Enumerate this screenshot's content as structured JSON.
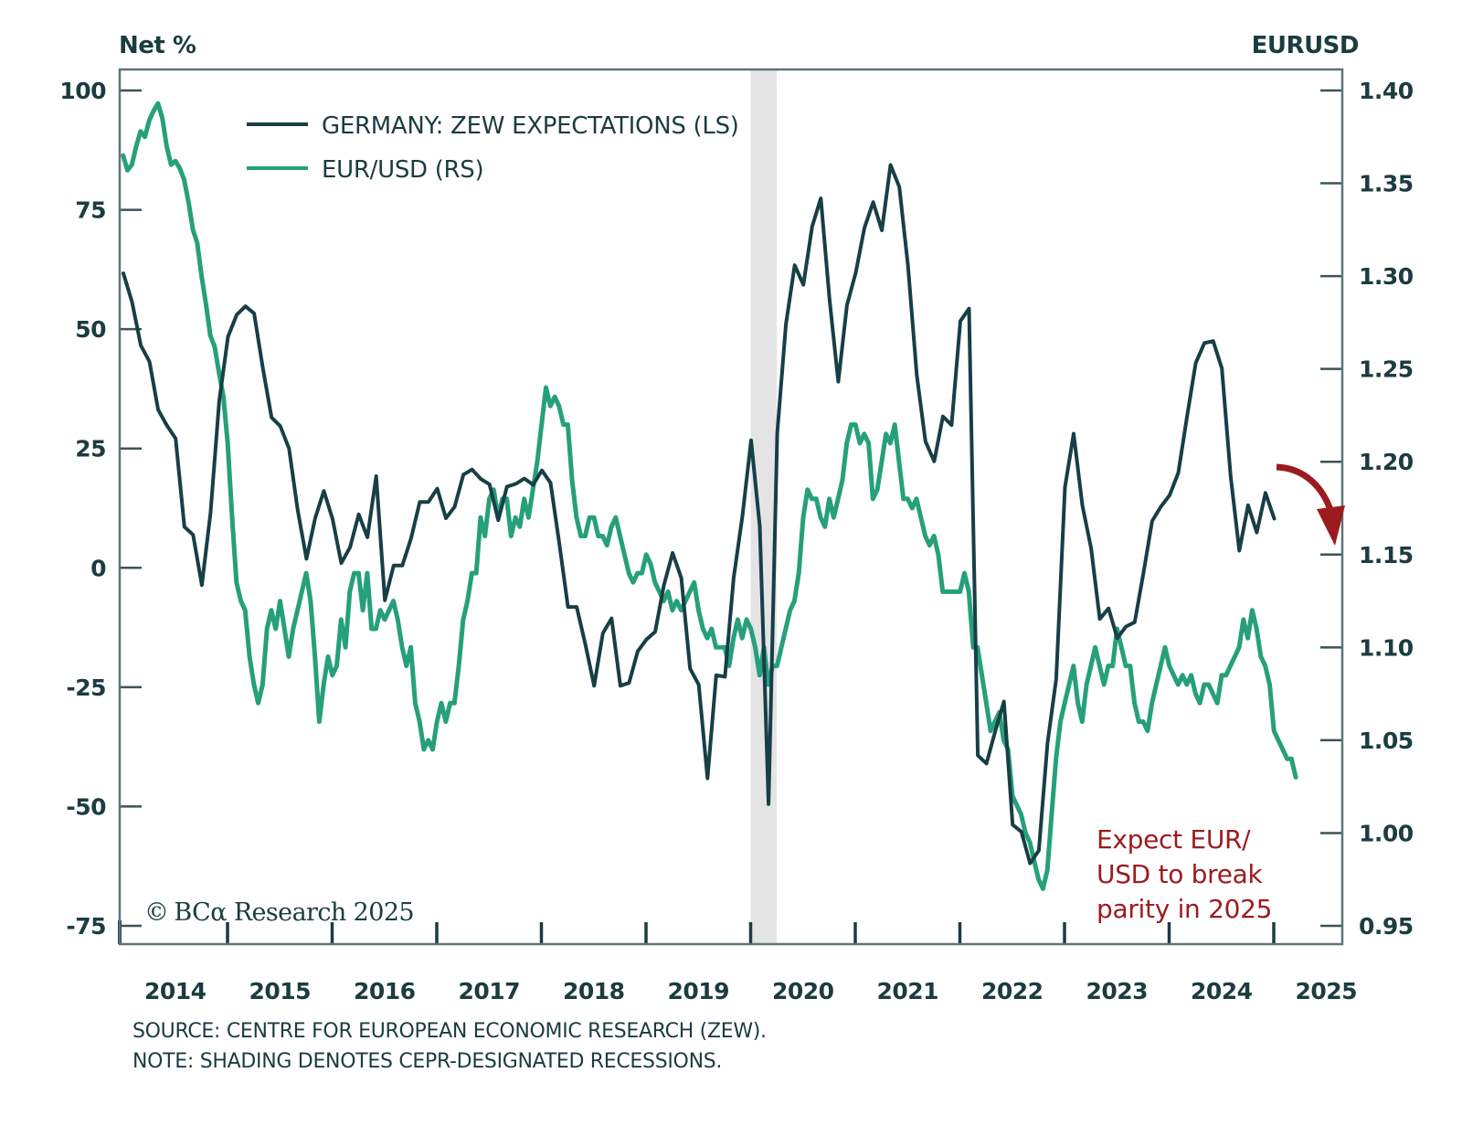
{
  "chart_data": {
    "type": "line",
    "left_axis_title": "Net %",
    "right_axis_title": "EURUSD",
    "left_ylim": [
      -75,
      100
    ],
    "right_ylim": [
      0.95,
      1.4
    ],
    "left_ticks": [
      100,
      75,
      50,
      25,
      0,
      -25,
      -50,
      -75
    ],
    "left_tick_labels": [
      "100",
      "75",
      "50",
      "25",
      "0",
      "-25",
      "-50",
      "-75"
    ],
    "right_ticks": [
      1.4,
      1.35,
      1.3,
      1.25,
      1.2,
      1.15,
      1.1,
      1.05,
      1.0,
      0.95
    ],
    "right_tick_labels": [
      "1.40",
      "1.35",
      "1.30",
      "1.25",
      "1.20",
      "1.15",
      "1.10",
      "1.05",
      "1.00",
      "0.95"
    ],
    "xlim": [
      2014.0,
      2025.65
    ],
    "x_tick_years": [
      2015,
      2016,
      2017,
      2018,
      2019,
      2020,
      2021,
      2022,
      2023,
      2024,
      2025
    ],
    "x_labels": [
      "2014",
      "2015",
      "2016",
      "2017",
      "2018",
      "2019",
      "2020",
      "2021",
      "2022",
      "2023",
      "2024",
      "2025"
    ],
    "recessions": [
      [
        2020.0,
        2020.25
      ]
    ],
    "legend": [
      {
        "label": "GERMANY: ZEW EXPECTATIONS (LS)",
        "color": "#173f45"
      },
      {
        "label": "EUR/USD (RS)",
        "color": "#26a07a"
      }
    ],
    "grid": false,
    "legend_position": "top-left",
    "series": [
      {
        "name": "GERMANY: ZEW EXPECTATIONS (LS)",
        "axis": "left",
        "color": "#173f45",
        "start": 2014.0,
        "step_per_year": 12,
        "values": [
          61.7,
          55.7,
          46.6,
          43.2,
          33.1,
          29.8,
          27.1,
          8.6,
          6.9,
          -3.6,
          11.5,
          34.9,
          48.4,
          53.0,
          54.8,
          53.3,
          41.9,
          31.5,
          29.7,
          25.0,
          12.1,
          1.9,
          10.4,
          16.1,
          10.2,
          1.0,
          4.3,
          11.2,
          6.4,
          19.2,
          -6.8,
          0.5,
          0.5,
          6.2,
          13.8,
          13.8,
          16.6,
          10.4,
          12.8,
          19.5,
          20.6,
          18.6,
          17.5,
          10.0,
          17.0,
          17.6,
          18.7,
          17.4,
          20.4,
          17.8,
          5.1,
          -8.2,
          -8.2,
          -16.1,
          -24.7,
          -13.7,
          -10.6,
          -24.7,
          -24.1,
          -17.5,
          -15.0,
          -13.4,
          -3.6,
          3.1,
          -2.1,
          -21.1,
          -24.5,
          -44.1,
          -22.5,
          -22.8,
          -2.1,
          10.7,
          26.7,
          8.7,
          -49.5,
          28.2,
          51.0,
          63.4,
          59.3,
          71.5,
          77.4,
          56.1,
          39.0,
          55.0,
          61.8,
          71.2,
          76.6,
          70.7,
          84.4,
          79.8,
          63.3,
          40.4,
          26.5,
          22.3,
          31.7,
          29.9,
          51.7,
          54.3,
          -39.3,
          -41.0,
          -34.3,
          -28.0,
          -53.8,
          -55.3,
          -61.9,
          -59.2,
          -36.7,
          -23.3,
          16.9,
          28.1,
          13.0,
          4.1,
          -10.7,
          -8.5,
          -14.7,
          -12.3,
          -11.4,
          -1.1,
          9.8,
          12.8,
          15.2,
          19.9,
          31.7,
          42.9,
          47.1,
          47.5,
          41.8,
          19.2,
          3.6,
          13.1,
          7.4,
          15.7,
          10.3
        ]
      },
      {
        "name": "EUR/USD (RS)",
        "axis": "right",
        "color": "#26a07a",
        "start": 2014.0,
        "step_per_year": 24,
        "values": [
          1.365,
          1.357,
          1.36,
          1.37,
          1.378,
          1.375,
          1.384,
          1.389,
          1.393,
          1.385,
          1.37,
          1.36,
          1.362,
          1.358,
          1.352,
          1.34,
          1.325,
          1.318,
          1.3,
          1.285,
          1.268,
          1.262,
          1.248,
          1.235,
          1.21,
          1.17,
          1.135,
          1.125,
          1.12,
          1.095,
          1.08,
          1.07,
          1.08,
          1.11,
          1.12,
          1.11,
          1.125,
          1.11,
          1.095,
          1.11,
          1.12,
          1.13,
          1.14,
          1.125,
          1.095,
          1.06,
          1.08,
          1.095,
          1.085,
          1.09,
          1.115,
          1.1,
          1.13,
          1.14,
          1.14,
          1.12,
          1.14,
          1.11,
          1.11,
          1.12,
          1.115,
          1.12,
          1.125,
          1.115,
          1.1,
          1.09,
          1.1,
          1.07,
          1.06,
          1.045,
          1.05,
          1.045,
          1.06,
          1.07,
          1.06,
          1.07,
          1.07,
          1.09,
          1.115,
          1.125,
          1.14,
          1.14,
          1.17,
          1.16,
          1.18,
          1.185,
          1.17,
          1.18,
          1.18,
          1.16,
          1.17,
          1.165,
          1.18,
          1.17,
          1.185,
          1.2,
          1.22,
          1.24,
          1.23,
          1.235,
          1.23,
          1.22,
          1.22,
          1.19,
          1.17,
          1.16,
          1.16,
          1.17,
          1.17,
          1.16,
          1.16,
          1.155,
          1.165,
          1.17,
          1.16,
          1.15,
          1.14,
          1.135,
          1.14,
          1.14,
          1.15,
          1.145,
          1.135,
          1.13,
          1.125,
          1.13,
          1.12,
          1.125,
          1.12,
          1.125,
          1.13,
          1.135,
          1.12,
          1.11,
          1.105,
          1.11,
          1.1,
          1.1,
          1.1,
          1.09,
          1.105,
          1.115,
          1.105,
          1.115,
          1.11,
          1.1,
          1.085,
          1.1,
          1.08,
          1.09,
          1.09,
          1.1,
          1.11,
          1.12,
          1.125,
          1.14,
          1.17,
          1.185,
          1.18,
          1.18,
          1.17,
          1.165,
          1.18,
          1.17,
          1.18,
          1.19,
          1.21,
          1.22,
          1.22,
          1.21,
          1.215,
          1.21,
          1.18,
          1.185,
          1.2,
          1.215,
          1.21,
          1.22,
          1.2,
          1.18,
          1.18,
          1.175,
          1.18,
          1.17,
          1.16,
          1.155,
          1.16,
          1.15,
          1.13,
          1.13,
          1.13,
          1.13,
          1.13,
          1.14,
          1.13,
          1.1,
          1.1,
          1.085,
          1.07,
          1.055,
          1.06,
          1.065,
          1.05,
          1.045,
          1.02,
          1.015,
          1.01,
          1.0,
          0.995,
          0.985,
          0.975,
          0.97,
          0.98,
          1.01,
          1.04,
          1.06,
          1.07,
          1.08,
          1.09,
          1.07,
          1.06,
          1.08,
          1.09,
          1.1,
          1.09,
          1.08,
          1.09,
          1.09,
          1.11,
          1.1,
          1.09,
          1.09,
          1.07,
          1.06,
          1.06,
          1.055,
          1.07,
          1.08,
          1.09,
          1.1,
          1.09,
          1.085,
          1.08,
          1.085,
          1.08,
          1.085,
          1.075,
          1.07,
          1.08,
          1.08,
          1.075,
          1.07,
          1.085,
          1.085,
          1.09,
          1.095,
          1.1,
          1.115,
          1.105,
          1.12,
          1.11,
          1.095,
          1.09,
          1.08,
          1.055,
          1.05,
          1.045,
          1.04,
          1.04,
          1.03
        ]
      }
    ],
    "annotation": {
      "lines": [
        "Expect EUR/",
        "USD to break",
        "parity in 2025"
      ],
      "color": "#9b1b1e"
    }
  },
  "legend": {
    "zew_label": "GERMANY: ZEW EXPECTATIONS (LS)",
    "eur_label": "EUR/USD (RS)"
  },
  "axes": {
    "left_title": "Net %",
    "right_title": "EURUSD"
  },
  "brand": {
    "copyright": "©",
    "name": "BCα Research 2025"
  },
  "footer": {
    "source": "SOURCE: CENTRE FOR EUROPEAN ECONOMIC RESEARCH (ZEW).",
    "note": "NOTE: SHADING DENOTES CEPR-DESIGNATED RECESSIONS."
  },
  "annotation": {
    "line1": "Expect EUR/",
    "line2": "USD to break",
    "line3": "parity in 2025"
  }
}
